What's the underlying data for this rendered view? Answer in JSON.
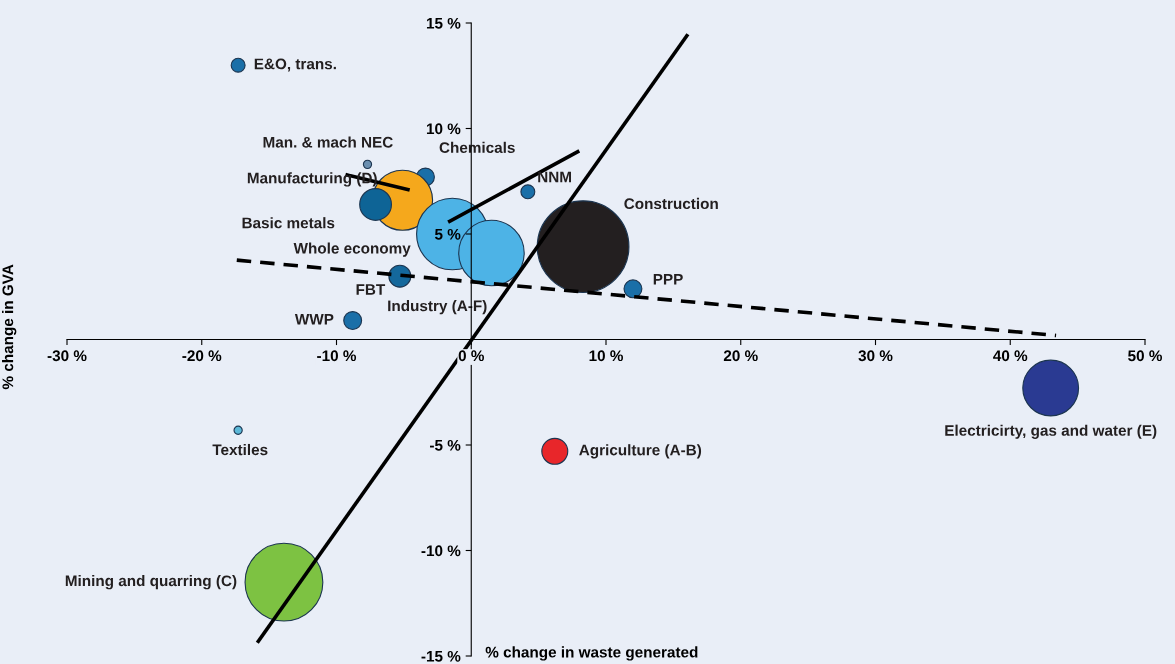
{
  "chart_data": {
    "type": "bubble",
    "xlabel": "% change in waste generated",
    "ylabel": "% change in GVA",
    "xlim": [
      -30,
      50
    ],
    "ylim": [
      -15,
      15
    ],
    "xticks": [
      {
        "value": -30,
        "label": "-30 %"
      },
      {
        "value": -20,
        "label": "-20 %"
      },
      {
        "value": -10,
        "label": "-10 %"
      },
      {
        "value": 0,
        "label": "0 %"
      },
      {
        "value": 10,
        "label": "10 %"
      },
      {
        "value": 20,
        "label": "20 %"
      },
      {
        "value": 30,
        "label": "30 %"
      },
      {
        "value": 40,
        "label": "40 %"
      },
      {
        "value": 50,
        "label": "50 %"
      }
    ],
    "yticks": [
      {
        "value": -15,
        "label": "-15 %"
      },
      {
        "value": -10,
        "label": "-10 %"
      },
      {
        "value": -5,
        "label": "-5 %"
      },
      {
        "value": 5,
        "label": "5 %"
      },
      {
        "value": 10,
        "label": "10 %"
      },
      {
        "value": 15,
        "label": "15 %"
      }
    ],
    "grid": false,
    "legend": false,
    "series": [
      {
        "name": "E&O, trans.",
        "color": "#1a6fa8",
        "x": [
          -17.3
        ],
        "values": [
          13.0
        ],
        "sizes": [
          0.023
        ]
      },
      {
        "name": "Man. & mach NEC",
        "color": "#6b8fb0",
        "x": [
          -7.7
        ],
        "values": [
          8.3
        ],
        "sizes": [
          0.008
        ]
      },
      {
        "name": "Chemicals",
        "color": "#1a6fa8",
        "x": [
          -3.4
        ],
        "values": [
          7.7
        ],
        "sizes": [
          0.038
        ]
      },
      {
        "name": "NNM",
        "color": "#1a6fa8",
        "x": [
          4.2
        ],
        "values": [
          7.0
        ],
        "sizes": [
          0.023
        ]
      },
      {
        "name": "Manufacturing (D)",
        "color": "#f5a81c",
        "x": [
          -5.1
        ],
        "values": [
          6.6
        ],
        "sizes": [
          0.43
        ]
      },
      {
        "name": "Basic metals",
        "color": "#0e6496",
        "x": [
          -7.1
        ],
        "values": [
          6.4
        ],
        "sizes": [
          0.12
        ]
      },
      {
        "name": "Whole economy",
        "color": "#4db3e6",
        "x": [
          -1.4
        ],
        "values": [
          5.0
        ],
        "sizes": [
          0.61
        ]
      },
      {
        "name": "Industry (A-F)",
        "color": "#4db3e6",
        "x": [
          1.5
        ],
        "values": [
          4.1
        ],
        "sizes": [
          0.51
        ]
      },
      {
        "name": "Construction",
        "color": "#231f20",
        "x": [
          8.3
        ],
        "values": [
          4.4
        ],
        "sizes": [
          1
        ]
      },
      {
        "name": "FBT",
        "color": "#14689c",
        "x": [
          -5.3
        ],
        "values": [
          3.0
        ],
        "sizes": [
          0.057
        ]
      },
      {
        "name": "PPP",
        "color": "#1a6fa8",
        "x": [
          12.0
        ],
        "values": [
          2.4
        ],
        "sizes": [
          0.038
        ]
      },
      {
        "name": "WWP",
        "color": "#1a6fa8",
        "x": [
          -8.8
        ],
        "values": [
          0.9
        ],
        "sizes": [
          0.038
        ]
      },
      {
        "name": "Electricirty, gas and water (E)",
        "color": "#2a3a92",
        "x": [
          43.0
        ],
        "values": [
          -2.3
        ],
        "sizes": [
          0.37
        ]
      },
      {
        "name": "Textiles",
        "color": "#5bb8d8",
        "x": [
          -17.3
        ],
        "values": [
          -4.3
        ],
        "sizes": [
          0.008
        ]
      },
      {
        "name": "Agriculture (A-B)",
        "color": "#e8262a",
        "x": [
          6.2
        ],
        "values": [
          -5.3
        ],
        "sizes": [
          0.08
        ]
      },
      {
        "name": "Mining and quarring (C)",
        "color": "#7dc242",
        "x": [
          -13.9
        ],
        "values": [
          -11.5
        ],
        "sizes": [
          0.72
        ]
      },
      {
        "type": "line",
        "color": "#000000",
        "x": [
          -15.8,
          16.0
        ],
        "values": [
          -14.3,
          14.4
        ],
        "line_style": "solid"
      },
      {
        "type": "line",
        "color": "#000000",
        "x": [
          -17.4,
          43.4
        ],
        "values": [
          3.76,
          0.19
        ],
        "line_style": "dashed"
      },
      {
        "type": "line",
        "color": "#000000",
        "x": [
          -1.6,
          7.9
        ],
        "values": [
          5.6,
          8.9
        ],
        "line_style": "solid"
      },
      {
        "type": "line",
        "color": "#000000",
        "x": [
          -9.2,
          -4.7
        ],
        "values": [
          7.8,
          7.1
        ],
        "line_style": "solid"
      }
    ]
  }
}
